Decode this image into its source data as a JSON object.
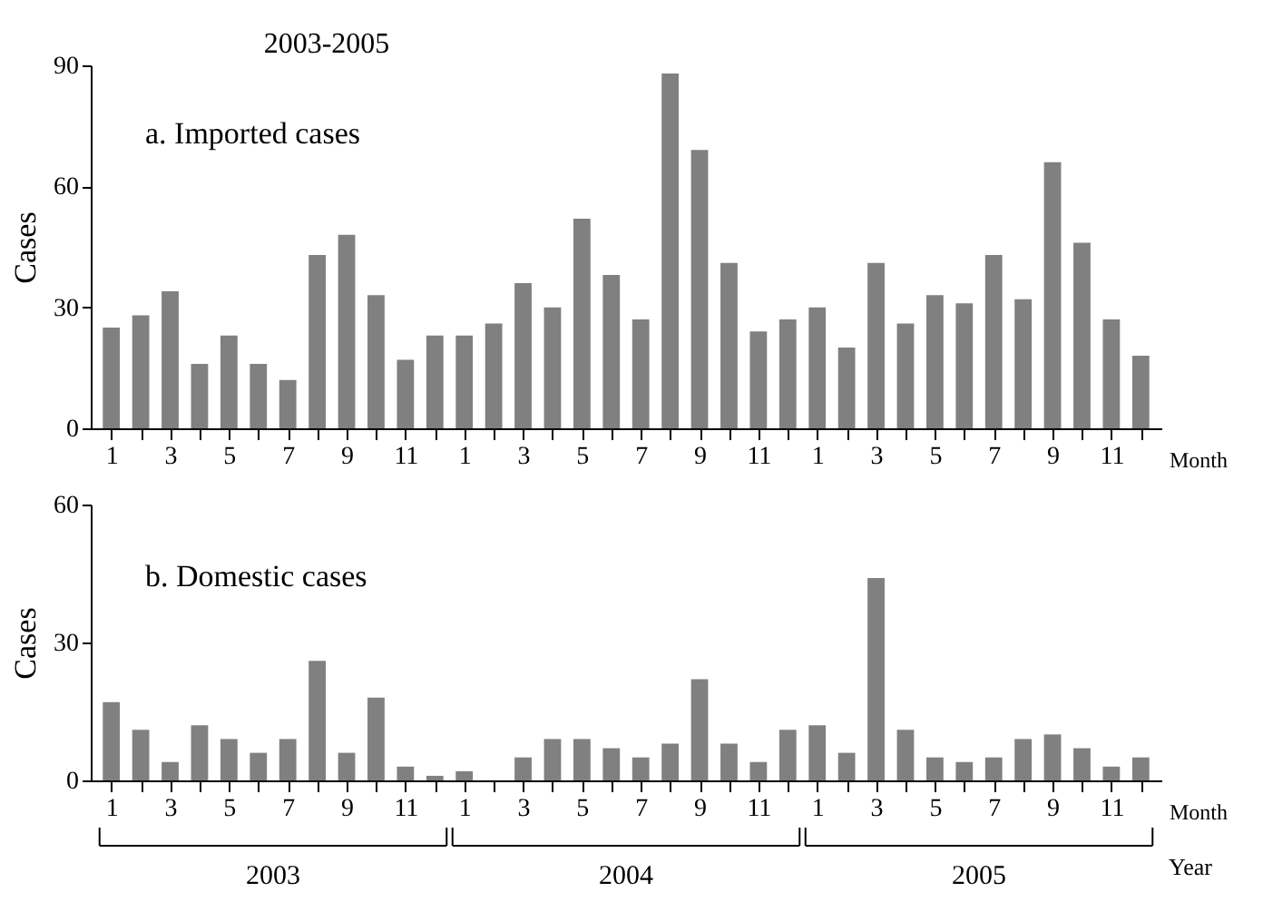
{
  "chart_data": [
    {
      "type": "bar",
      "title": "2003-2005",
      "subtitle": "a. Imported cases",
      "ylabel": "Cases",
      "xlabel": "Month",
      "color": "#808080",
      "grid": false,
      "categories": [
        "1",
        null,
        "3",
        null,
        "5",
        null,
        "7",
        null,
        "9",
        null,
        "11",
        null,
        "1",
        null,
        "3",
        null,
        "5",
        null,
        "7",
        null,
        "9",
        null,
        "11",
        null,
        "1",
        null,
        "3",
        null,
        "5",
        null,
        "7",
        null,
        "9",
        null,
        "11",
        null
      ],
      "values": [
        25,
        28,
        34,
        16,
        23,
        16,
        12,
        43,
        48,
        33,
        17,
        23,
        23,
        26,
        36,
        30,
        52,
        38,
        27,
        88,
        69,
        41,
        24,
        27,
        30,
        20,
        41,
        26,
        33,
        31,
        43,
        32,
        66,
        46,
        27,
        18
      ],
      "ylim": [
        0,
        90
      ],
      "yticks": [
        0,
        30,
        60,
        90
      ]
    },
    {
      "type": "bar",
      "title": "b. Domestic cases",
      "ylabel": "Cases",
      "xlabel": "Month",
      "color": "#808080",
      "grid": false,
      "categories": [
        "1",
        null,
        "3",
        null,
        "5",
        null,
        "7",
        null,
        "9",
        null,
        "11",
        null,
        "1",
        null,
        "3",
        null,
        "5",
        null,
        "7",
        null,
        "9",
        null,
        "11",
        null,
        "1",
        null,
        "3",
        null,
        "5",
        null,
        "7",
        null,
        "9",
        null,
        "11",
        null
      ],
      "values": [
        17,
        11,
        4,
        12,
        9,
        6,
        9,
        26,
        6,
        18,
        3,
        1,
        2,
        0,
        5,
        9,
        9,
        7,
        5,
        8,
        22,
        8,
        4,
        11,
        12,
        6,
        44,
        11,
        5,
        4,
        5,
        9,
        10,
        7,
        3,
        5
      ],
      "ylim": [
        0,
        60
      ],
      "yticks": [
        0,
        30,
        60
      ],
      "annotations": [
        "2003",
        "2004",
        "2005",
        "Year"
      ]
    }
  ]
}
